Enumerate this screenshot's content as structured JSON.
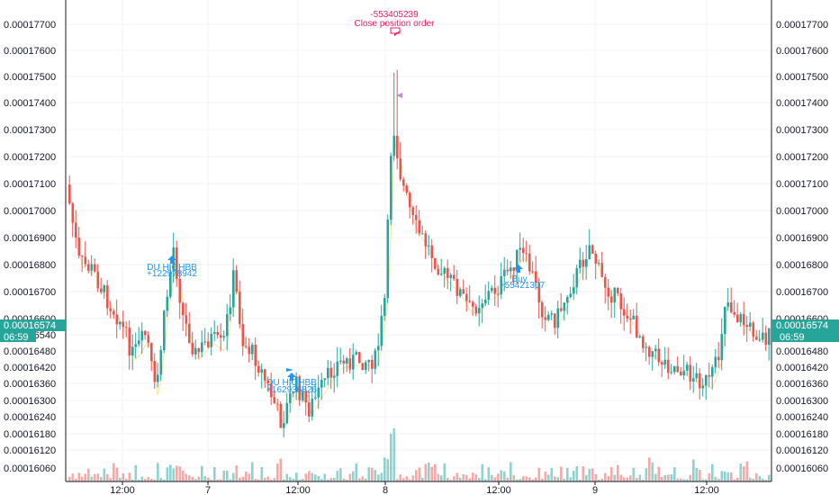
{
  "chart_data": {
    "type": "candlestick",
    "y_ticks": [
      "0.00016060",
      "0.00016120",
      "0.00016180",
      "0.00016240",
      "0.00016300",
      "0.00016360",
      "0.00016420",
      "0.00016480",
      "0.00016540",
      "0.00016600",
      "0.00016700",
      "0.00016800",
      "0.00016900",
      "0.00017000",
      "0.00017100",
      "0.00017200",
      "0.00017300",
      "0.00017400",
      "0.00017500",
      "0.00017600",
      "0.00017700"
    ],
    "x_ticks": [
      "12:00",
      "7",
      "12:00",
      "8",
      "12:00",
      "9",
      "12:00"
    ],
    "last_price": "0.00016574",
    "countdown": "06:59",
    "colors": {
      "up": "#26a69a",
      "down": "#ef5350",
      "ma": "#f3e79a",
      "annotation_buy": "#2196f3",
      "annotation_sell": "#e91e63",
      "price_tag": "#26a69a"
    },
    "annotations": [
      {
        "text_value": "-553405239",
        "text_label": "Close position order",
        "side": "sell"
      },
      {
        "text_name": "DU HIGHBB",
        "text_value": "+122978942",
        "side": "buy"
      },
      {
        "text_name": "DU HIGHBB",
        "text_value": "+162936826",
        "side": "buy"
      },
      {
        "text_name": "Buy",
        "text_value": "+55421307",
        "side": "buy"
      }
    ]
  }
}
